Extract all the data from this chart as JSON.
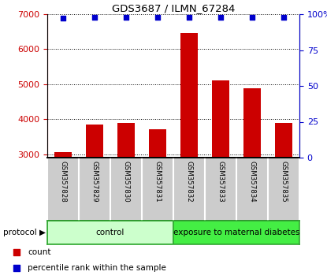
{
  "title": "GDS3687 / ILMN_67284",
  "samples": [
    "GSM357828",
    "GSM357829",
    "GSM357830",
    "GSM357831",
    "GSM357832",
    "GSM357833",
    "GSM357834",
    "GSM357835"
  ],
  "counts": [
    3050,
    3850,
    3880,
    3720,
    6450,
    5100,
    4880,
    3880
  ],
  "percentiles": [
    97,
    98,
    98,
    98,
    98,
    98,
    98,
    98
  ],
  "ylim_left": [
    2900,
    7000
  ],
  "ylim_right": [
    0,
    100
  ],
  "yticks_left": [
    3000,
    4000,
    5000,
    6000,
    7000
  ],
  "yticks_right": [
    0,
    25,
    50,
    75,
    100
  ],
  "bar_color": "#cc0000",
  "dot_color": "#0000cc",
  "bar_width": 0.55,
  "groups": [
    {
      "label": "control",
      "indices": [
        0,
        1,
        2,
        3
      ],
      "color": "#ccffcc",
      "border": "#44bb44"
    },
    {
      "label": "exposure to maternal diabetes",
      "indices": [
        4,
        5,
        6,
        7
      ],
      "color": "#44ee44",
      "border": "#44bb44"
    }
  ],
  "protocol_label": "protocol",
  "legend_count_label": "count",
  "legend_pct_label": "percentile rank within the sample",
  "tick_label_color_left": "#cc0000",
  "tick_label_color_right": "#0000cc",
  "background_color": "#ffffff",
  "xticklabel_bg": "#cccccc"
}
